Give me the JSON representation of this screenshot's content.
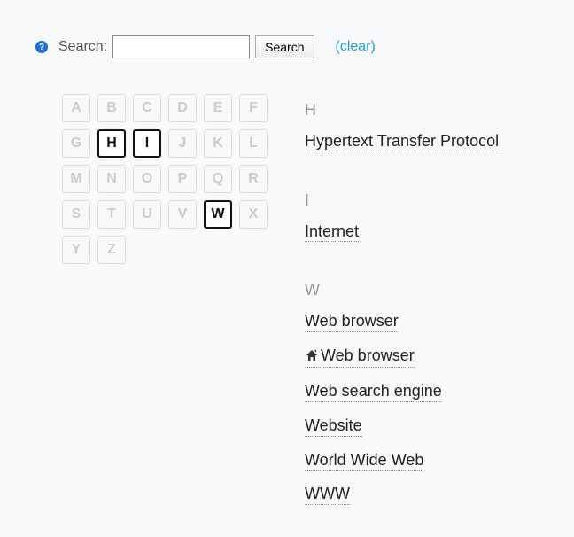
{
  "search": {
    "label": "Search:",
    "button": "Search",
    "clear": "(clear)",
    "value": "",
    "placeholder": ""
  },
  "alphabet": {
    "letters": [
      "A",
      "B",
      "C",
      "D",
      "E",
      "F",
      "G",
      "H",
      "I",
      "J",
      "K",
      "L",
      "M",
      "N",
      "O",
      "P",
      "Q",
      "R",
      "S",
      "T",
      "U",
      "V",
      "W",
      "X",
      "Y",
      "Z"
    ],
    "active": [
      "H",
      "I",
      "W"
    ]
  },
  "sections": [
    {
      "letter": "H",
      "entries": [
        {
          "label": "Hypertext Transfer Protocol",
          "icon": null
        }
      ]
    },
    {
      "letter": "I",
      "entries": [
        {
          "label": "Internet",
          "icon": null
        }
      ]
    },
    {
      "letter": "W",
      "entries": [
        {
          "label": "Web browser",
          "icon": null
        },
        {
          "label": "Web browser",
          "icon": "home"
        },
        {
          "label": "Web search engine",
          "icon": null
        },
        {
          "label": "Website",
          "icon": null
        },
        {
          "label": "World Wide Web",
          "icon": null
        },
        {
          "label": "WWW",
          "icon": null
        }
      ]
    }
  ],
  "colors": {
    "background": "#f7f9fb",
    "link": "#2a9fd6",
    "inactive_letter": "#ccc",
    "inactive_border": "#ddd",
    "active_border": "#111",
    "text": "#333",
    "section_letter": "#999",
    "entry_underline": "#888"
  }
}
